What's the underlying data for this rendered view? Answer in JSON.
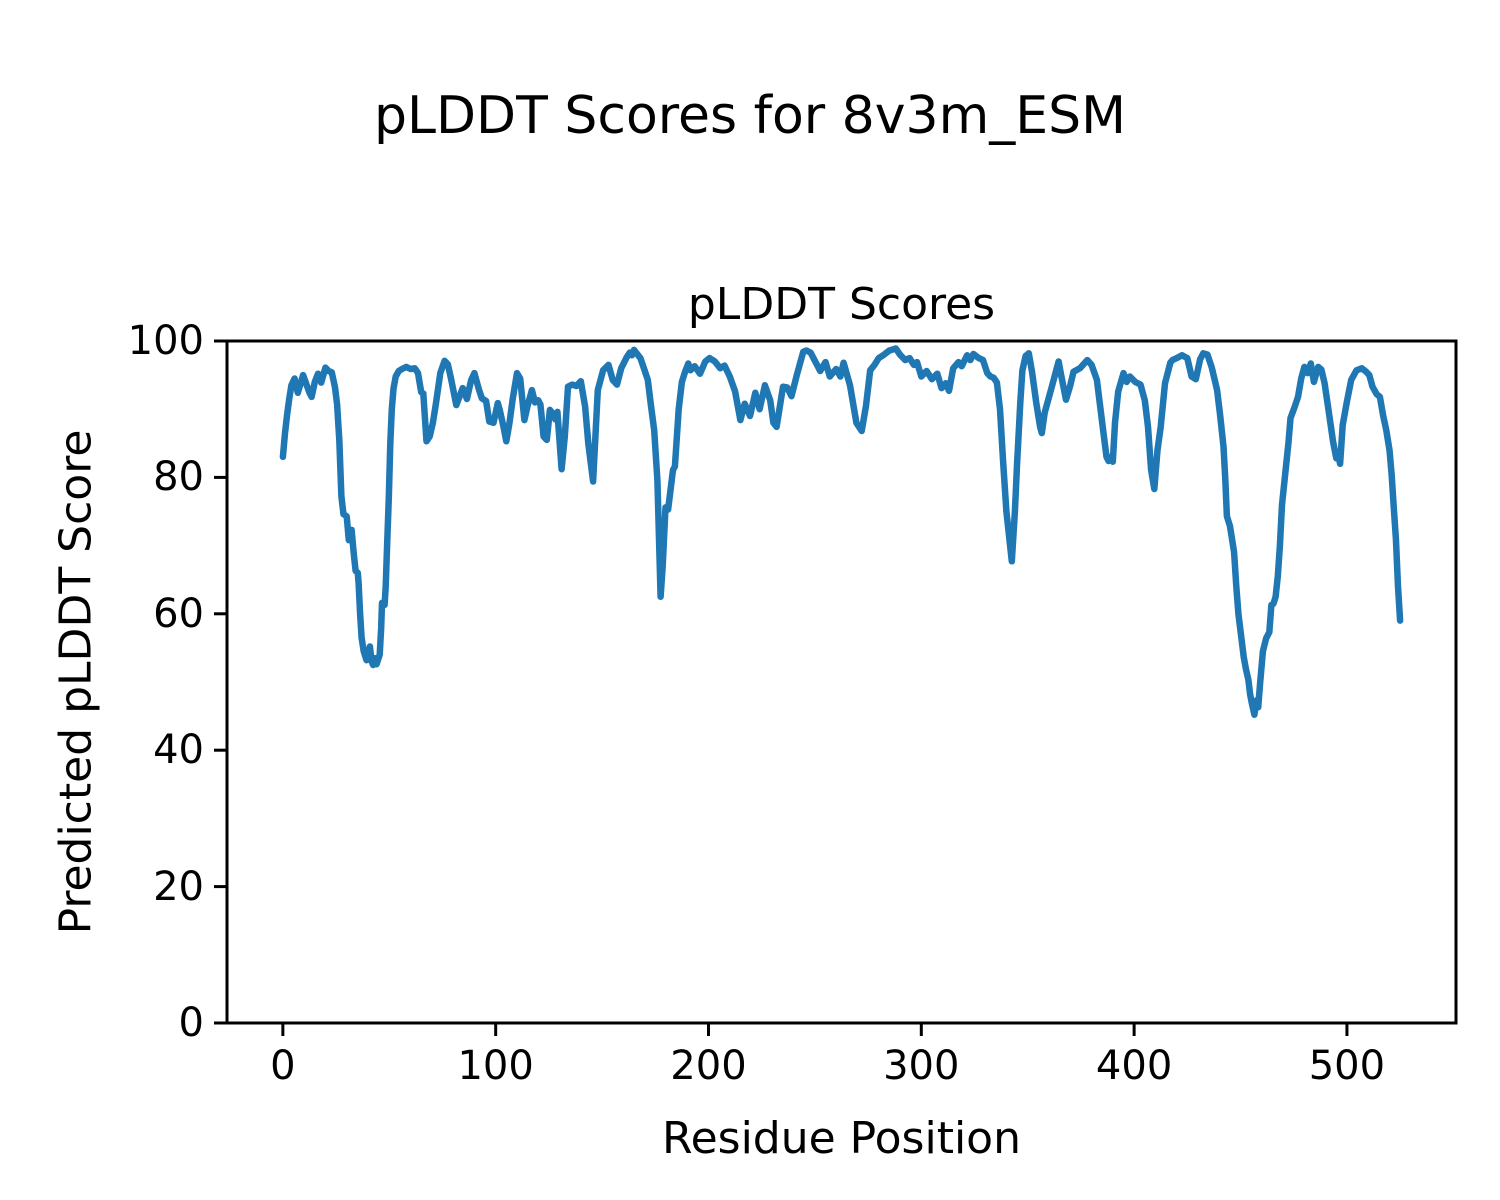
{
  "chart_data": {
    "type": "line",
    "figure_title": "pLDDT Scores for 8v3m_ESM",
    "title": "pLDDT Scores",
    "xlabel": "Residue Position",
    "ylabel": "Predicted pLDDT Score",
    "line_color": "#1f77b4",
    "axis_color": "#000000",
    "grid": false,
    "legend": "none",
    "xlim": [
      -26.25,
      551.25
    ],
    "ylim": [
      0,
      100
    ],
    "xticks": [
      0,
      100,
      200,
      300,
      400,
      500
    ],
    "yticks": [
      0,
      20,
      40,
      60,
      80,
      100
    ],
    "series_name": "pLDDT",
    "points": [
      [
        0,
        83
      ],
      [
        1,
        86.5
      ],
      [
        2,
        89.2
      ],
      [
        3,
        91.5
      ],
      [
        4,
        93.5
      ],
      [
        5.5,
        94.5
      ],
      [
        7,
        92.4
      ],
      [
        9.5,
        95
      ],
      [
        11,
        93.7
      ],
      [
        12.5,
        92.4
      ],
      [
        13.5,
        91.8
      ],
      [
        15,
        94
      ],
      [
        16.5,
        95.2
      ],
      [
        18,
        93.9
      ],
      [
        20,
        96.1
      ],
      [
        21.5,
        95.6
      ],
      [
        23,
        95.4
      ],
      [
        24.5,
        93.2
      ],
      [
        25.5,
        90.7
      ],
      [
        26.5,
        85.5
      ],
      [
        27.5,
        77.2
      ],
      [
        28.5,
        74.6
      ],
      [
        30,
        74.3
      ],
      [
        31,
        70.8
      ],
      [
        32.3,
        72.3
      ],
      [
        33.3,
        68.9
      ],
      [
        34.2,
        66.3
      ],
      [
        35.2,
        66
      ],
      [
        35.6,
        64.5
      ],
      [
        36.3,
        60
      ],
      [
        37,
        56.5
      ],
      [
        38,
        54.5
      ],
      [
        39.3,
        53.2
      ],
      [
        40,
        54.2
      ],
      [
        40.9,
        55.2
      ],
      [
        41.7,
        53
      ],
      [
        42.4,
        52.5
      ],
      [
        43.2,
        53.5
      ],
      [
        44,
        52.6
      ],
      [
        45.5,
        54
      ],
      [
        46.2,
        58
      ],
      [
        46.6,
        61.6
      ],
      [
        47.8,
        61.3
      ],
      [
        48.3,
        64
      ],
      [
        49,
        70
      ],
      [
        49.8,
        77
      ],
      [
        50.5,
        85
      ],
      [
        51.2,
        90
      ],
      [
        52,
        93
      ],
      [
        53,
        94.8
      ],
      [
        54.5,
        95.6
      ],
      [
        56,
        95.9
      ],
      [
        58,
        96.2
      ],
      [
        60,
        95.9
      ],
      [
        62,
        96
      ],
      [
        63.5,
        95.3
      ],
      [
        65,
        92.5
      ],
      [
        66,
        92.3
      ],
      [
        67.5,
        85.3
      ],
      [
        69,
        86
      ],
      [
        70.5,
        88
      ],
      [
        72,
        91
      ],
      [
        74,
        95.3
      ],
      [
        76,
        97.1
      ],
      [
        77.5,
        96.6
      ],
      [
        79,
        94.5
      ],
      [
        81.5,
        90.6
      ],
      [
        84.5,
        93.1
      ],
      [
        86.5,
        91.5
      ],
      [
        88.5,
        94.3
      ],
      [
        90,
        95.3
      ],
      [
        92,
        93
      ],
      [
        93.5,
        91.6
      ],
      [
        95.5,
        91.2
      ],
      [
        97,
        88.2
      ],
      [
        99,
        88
      ],
      [
        101,
        90.9
      ],
      [
        102,
        89.8
      ],
      [
        103.5,
        87.7
      ],
      [
        105,
        85.3
      ],
      [
        106.5,
        88
      ],
      [
        108,
        91.5
      ],
      [
        110,
        95.3
      ],
      [
        111.5,
        94.5
      ],
      [
        113.5,
        88.4
      ],
      [
        115,
        90.5
      ],
      [
        117,
        92.8
      ],
      [
        118.5,
        91
      ],
      [
        120,
        91.3
      ],
      [
        121,
        90.7
      ],
      [
        122.5,
        86
      ],
      [
        124,
        85.5
      ],
      [
        125.5,
        89.9
      ],
      [
        127,
        89.3
      ],
      [
        128,
        88.5
      ],
      [
        129,
        89.6
      ],
      [
        131,
        81.2
      ],
      [
        132.5,
        86
      ],
      [
        134,
        93.3
      ],
      [
        136,
        93.6
      ],
      [
        138,
        93.4
      ],
      [
        140,
        94.1
      ],
      [
        142,
        90.4
      ],
      [
        143.5,
        85
      ],
      [
        145.8,
        79.4
      ],
      [
        148,
        92.8
      ],
      [
        150.5,
        95.7
      ],
      [
        153,
        96.5
      ],
      [
        155,
        94.3
      ],
      [
        157,
        93.6
      ],
      [
        159,
        96
      ],
      [
        161.5,
        97.6
      ],
      [
        163,
        98.3
      ],
      [
        164,
        97.9
      ],
      [
        165,
        98.7
      ],
      [
        166.5,
        98.1
      ],
      [
        168,
        97.5
      ],
      [
        170,
        95.7
      ],
      [
        171.5,
        94.3
      ],
      [
        173,
        90.5
      ],
      [
        174.5,
        86.9
      ],
      [
        176,
        79.6
      ],
      [
        177.5,
        62.5
      ],
      [
        178.5,
        67
      ],
      [
        179.8,
        75.6
      ],
      [
        181,
        75.3
      ],
      [
        183.3,
        81.1
      ],
      [
        184.2,
        81.6
      ],
      [
        186,
        90
      ],
      [
        187.5,
        94
      ],
      [
        189,
        95.5
      ],
      [
        190.5,
        96.7
      ],
      [
        191.5,
        95.7
      ],
      [
        193.5,
        96.3
      ],
      [
        196,
        95.2
      ],
      [
        198.5,
        97
      ],
      [
        200.5,
        97.5
      ],
      [
        203,
        97
      ],
      [
        205.5,
        96
      ],
      [
        207.5,
        96.4
      ],
      [
        210,
        94.8
      ],
      [
        212.5,
        92.6
      ],
      [
        215,
        88.4
      ],
      [
        217,
        90.8
      ],
      [
        219.5,
        89
      ],
      [
        222,
        92.4
      ],
      [
        224,
        90
      ],
      [
        226.5,
        93.5
      ],
      [
        229,
        91.3
      ],
      [
        230.5,
        88
      ],
      [
        232,
        87.4
      ],
      [
        235,
        93.3
      ],
      [
        237,
        93.2
      ],
      [
        239,
        91.9
      ],
      [
        241.5,
        95
      ],
      [
        244.5,
        98.4
      ],
      [
        246,
        98.6
      ],
      [
        248,
        98.3
      ],
      [
        251,
        96.5
      ],
      [
        252.5,
        95.6
      ],
      [
        255,
        96.9
      ],
      [
        257,
        94.8
      ],
      [
        260,
        95.9
      ],
      [
        262,
        94.8
      ],
      [
        263.5,
        96.8
      ],
      [
        266.5,
        93.5
      ],
      [
        269.5,
        88
      ],
      [
        272,
        86.8
      ],
      [
        274,
        90.5
      ],
      [
        276,
        95.7
      ],
      [
        278,
        96.5
      ],
      [
        280,
        97.5
      ],
      [
        282.5,
        98
      ],
      [
        285,
        98.6
      ],
      [
        288,
        98.9
      ],
      [
        290,
        98
      ],
      [
        292.5,
        97.2
      ],
      [
        294.5,
        97.5
      ],
      [
        296.5,
        96.5
      ],
      [
        298,
        96.9
      ],
      [
        300,
        94.8
      ],
      [
        302.5,
        95.6
      ],
      [
        305,
        94.4
      ],
      [
        307.5,
        95.2
      ],
      [
        309.5,
        93.1
      ],
      [
        311.5,
        93.8
      ],
      [
        313,
        92.7
      ],
      [
        315,
        96
      ],
      [
        317.5,
        96.9
      ],
      [
        319,
        96.3
      ],
      [
        321.5,
        97.9
      ],
      [
        323,
        97.2
      ],
      [
        324.5,
        98.1
      ],
      [
        327,
        97.5
      ],
      [
        329,
        97.2
      ],
      [
        331,
        95.3
      ],
      [
        332.5,
        94.8
      ],
      [
        334,
        94.6
      ],
      [
        335.5,
        93.9
      ],
      [
        337,
        90
      ],
      [
        338.5,
        82.1
      ],
      [
        340,
        75
      ],
      [
        342.5,
        67.7
      ],
      [
        344,
        75
      ],
      [
        345,
        82.1
      ],
      [
        346.5,
        91
      ],
      [
        347.5,
        95.7
      ],
      [
        349,
        97.8
      ],
      [
        350.5,
        98.2
      ],
      [
        352,
        95.5
      ],
      [
        354,
        91
      ],
      [
        355.8,
        87.4
      ],
      [
        356.6,
        86.5
      ],
      [
        358,
        89.5
      ],
      [
        361.5,
        93.5
      ],
      [
        364.5,
        97
      ],
      [
        366,
        94.5
      ],
      [
        368,
        91.4
      ],
      [
        370,
        93.5
      ],
      [
        371.5,
        95.5
      ],
      [
        374.5,
        96
      ],
      [
        378,
        97.2
      ],
      [
        380,
        96.5
      ],
      [
        382.5,
        94.3
      ],
      [
        385,
        88
      ],
      [
        387,
        83
      ],
      [
        388,
        82.4
      ],
      [
        389,
        83
      ],
      [
        390,
        82.3
      ],
      [
        391,
        88
      ],
      [
        392.5,
        92.6
      ],
      [
        395,
        95.3
      ],
      [
        396.5,
        94
      ],
      [
        398,
        94.8
      ],
      [
        400.5,
        94
      ],
      [
        403,
        93.6
      ],
      [
        405,
        91.3
      ],
      [
        406.5,
        87.4
      ],
      [
        408,
        81.1
      ],
      [
        409.5,
        78.3
      ],
      [
        411,
        84
      ],
      [
        412.5,
        87.4
      ],
      [
        414.5,
        93.8
      ],
      [
        417,
        96.8
      ],
      [
        418,
        97.2
      ],
      [
        420,
        97.5
      ],
      [
        422.5,
        97.9
      ],
      [
        425,
        97.5
      ],
      [
        427,
        94.8
      ],
      [
        429,
        94.4
      ],
      [
        431,
        97.3
      ],
      [
        432.5,
        98.2
      ],
      [
        434.5,
        98
      ],
      [
        436.5,
        96.1
      ],
      [
        439,
        92.8
      ],
      [
        440.5,
        88.9
      ],
      [
        442,
        84.5
      ],
      [
        442.8,
        80
      ],
      [
        443.6,
        74.3
      ],
      [
        445,
        72.9
      ],
      [
        446,
        71
      ],
      [
        447,
        69
      ],
      [
        448,
        64
      ],
      [
        449,
        60
      ],
      [
        450,
        57.5
      ],
      [
        451.5,
        53.7
      ],
      [
        452.5,
        52
      ],
      [
        453.7,
        50.3
      ],
      [
        454.5,
        48.2
      ],
      [
        455.3,
        46.9
      ],
      [
        456.5,
        45.2
      ],
      [
        457.5,
        47.3
      ],
      [
        458.3,
        46.3
      ],
      [
        459.2,
        49.8
      ],
      [
        460.5,
        54.5
      ],
      [
        462,
        56.4
      ],
      [
        463.5,
        57.3
      ],
      [
        464.5,
        61.3
      ],
      [
        465.5,
        61.5
      ],
      [
        466.5,
        62.5
      ],
      [
        467.5,
        65.5
      ],
      [
        468.5,
        70
      ],
      [
        469.5,
        76
      ],
      [
        471,
        80.5
      ],
      [
        472.5,
        85
      ],
      [
        473.5,
        88.7
      ],
      [
        475.5,
        90.4
      ],
      [
        477,
        91.8
      ],
      [
        478.5,
        94.5
      ],
      [
        480,
        96.2
      ],
      [
        481.5,
        95.3
      ],
      [
        483,
        96.7
      ],
      [
        484.5,
        94
      ],
      [
        486.5,
        96.2
      ],
      [
        488,
        95.8
      ],
      [
        489.5,
        93.8
      ],
      [
        491,
        90.6
      ],
      [
        493.5,
        85.2
      ],
      [
        495,
        82.8
      ],
      [
        495.8,
        83.5
      ],
      [
        496.8,
        82
      ],
      [
        498,
        87.7
      ],
      [
        500,
        91.1
      ],
      [
        502,
        94.3
      ],
      [
        504.5,
        95.7
      ],
      [
        507,
        96
      ],
      [
        509,
        95.5
      ],
      [
        510.5,
        95
      ],
      [
        512,
        93.3
      ],
      [
        514,
        92.2
      ],
      [
        515.5,
        91.8
      ],
      [
        517,
        89.1
      ],
      [
        518.5,
        86.9
      ],
      [
        520,
        84
      ],
      [
        521,
        80.5
      ],
      [
        522,
        75.5
      ],
      [
        523,
        71
      ],
      [
        524,
        64
      ],
      [
        525,
        59
      ]
    ]
  }
}
